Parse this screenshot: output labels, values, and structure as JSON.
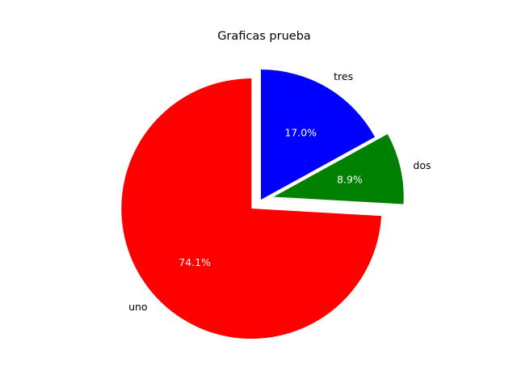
{
  "chart_data": {
    "type": "pie",
    "title": "Graficas prueba",
    "slices": [
      {
        "label": "uno",
        "value": 74.1,
        "pct_label": "74.1%",
        "color": "#ff0000",
        "explode": 0.1
      },
      {
        "label": "dos",
        "value": 8.9,
        "pct_label": "8.9%",
        "color": "#008000",
        "explode": 0.1
      },
      {
        "label": "tres",
        "value": 17.0,
        "pct_label": "17.0%",
        "color": "#0000ff",
        "explode": 0.0
      }
    ],
    "start_angle_deg": 90,
    "direction": "counterclockwise"
  }
}
